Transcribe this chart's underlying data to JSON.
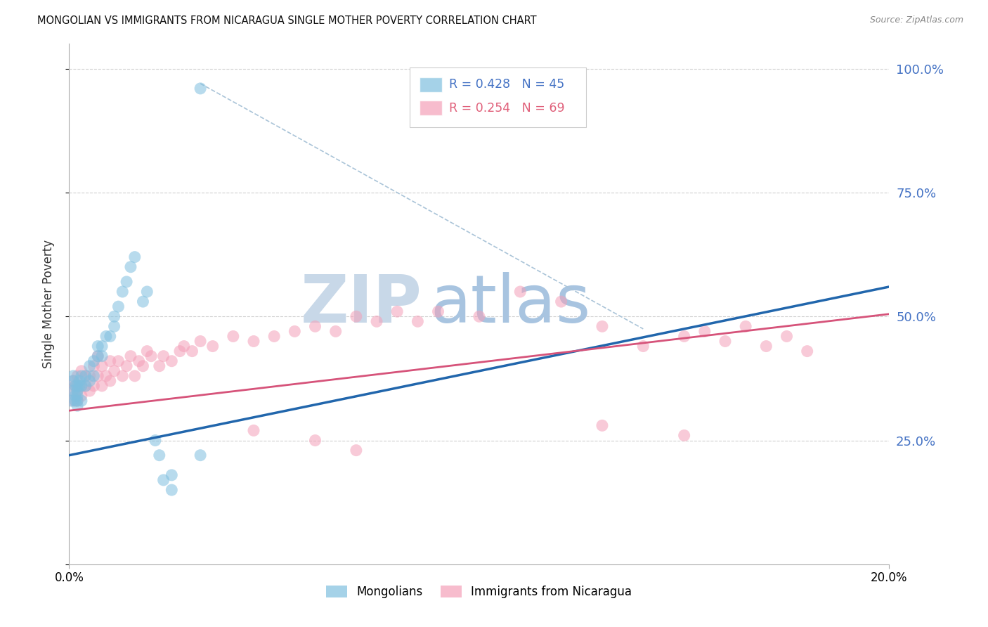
{
  "title": "MONGOLIAN VS IMMIGRANTS FROM NICARAGUA SINGLE MOTHER POVERTY CORRELATION CHART",
  "source": "Source: ZipAtlas.com",
  "ylabel": "Single Mother Poverty",
  "legend1_r": "0.428",
  "legend1_n": "45",
  "legend2_r": "0.254",
  "legend2_n": "69",
  "color_mongolian": "#7fbfdf",
  "color_nicaragua": "#f4a0b8",
  "color_blue_text": "#4472c4",
  "color_pink_text": "#e0607a",
  "watermark_zip_color": "#c8d8e8",
  "watermark_atlas_color": "#a8c4e0",
  "xlim": [
    0.0,
    0.2
  ],
  "ylim": [
    0.0,
    1.05
  ],
  "blue_line": [
    0.0,
    0.2,
    0.22,
    0.56
  ],
  "pink_line": [
    0.0,
    0.2,
    0.31,
    0.505
  ],
  "dashed_line": [
    0.032,
    0.14,
    0.97,
    0.475
  ],
  "mongolian_x": [
    0.0005,
    0.001,
    0.001,
    0.001,
    0.0015,
    0.0015,
    0.0015,
    0.002,
    0.002,
    0.002,
    0.002,
    0.002,
    0.0025,
    0.0025,
    0.003,
    0.003,
    0.003,
    0.004,
    0.004,
    0.005,
    0.005,
    0.006,
    0.006,
    0.007,
    0.007,
    0.008,
    0.008,
    0.009,
    0.01,
    0.011,
    0.011,
    0.012,
    0.013,
    0.014,
    0.015,
    0.016,
    0.018,
    0.019,
    0.021,
    0.022,
    0.023,
    0.025,
    0.025,
    0.032,
    0.032
  ],
  "mongolian_y": [
    0.33,
    0.35,
    0.37,
    0.38,
    0.33,
    0.34,
    0.36,
    0.32,
    0.33,
    0.34,
    0.35,
    0.36,
    0.36,
    0.37,
    0.33,
    0.36,
    0.38,
    0.36,
    0.38,
    0.37,
    0.4,
    0.38,
    0.41,
    0.42,
    0.44,
    0.42,
    0.44,
    0.46,
    0.46,
    0.48,
    0.5,
    0.52,
    0.55,
    0.57,
    0.6,
    0.62,
    0.53,
    0.55,
    0.25,
    0.22,
    0.17,
    0.15,
    0.18,
    0.96,
    0.22
  ],
  "nicaragua_x": [
    0.0005,
    0.001,
    0.001,
    0.0015,
    0.002,
    0.002,
    0.002,
    0.003,
    0.003,
    0.003,
    0.004,
    0.004,
    0.005,
    0.005,
    0.006,
    0.006,
    0.007,
    0.007,
    0.008,
    0.008,
    0.009,
    0.01,
    0.01,
    0.011,
    0.012,
    0.013,
    0.014,
    0.015,
    0.016,
    0.017,
    0.018,
    0.019,
    0.02,
    0.022,
    0.023,
    0.025,
    0.027,
    0.028,
    0.03,
    0.032,
    0.035,
    0.04,
    0.045,
    0.05,
    0.055,
    0.06,
    0.065,
    0.07,
    0.075,
    0.08,
    0.085,
    0.09,
    0.1,
    0.11,
    0.12,
    0.13,
    0.14,
    0.15,
    0.155,
    0.16,
    0.165,
    0.17,
    0.175,
    0.18,
    0.045,
    0.06,
    0.07,
    0.13,
    0.15
  ],
  "nicaragua_y": [
    0.35,
    0.33,
    0.37,
    0.36,
    0.33,
    0.35,
    0.38,
    0.34,
    0.36,
    0.39,
    0.36,
    0.38,
    0.35,
    0.38,
    0.36,
    0.4,
    0.38,
    0.42,
    0.36,
    0.4,
    0.38,
    0.37,
    0.41,
    0.39,
    0.41,
    0.38,
    0.4,
    0.42,
    0.38,
    0.41,
    0.4,
    0.43,
    0.42,
    0.4,
    0.42,
    0.41,
    0.43,
    0.44,
    0.43,
    0.45,
    0.44,
    0.46,
    0.45,
    0.46,
    0.47,
    0.48,
    0.47,
    0.5,
    0.49,
    0.51,
    0.49,
    0.51,
    0.5,
    0.55,
    0.53,
    0.48,
    0.44,
    0.46,
    0.47,
    0.45,
    0.48,
    0.44,
    0.46,
    0.43,
    0.27,
    0.25,
    0.23,
    0.28,
    0.26
  ],
  "ytick_vals": [
    0.0,
    0.25,
    0.5,
    0.75,
    1.0
  ],
  "ytick_labels_right": [
    "25.0%",
    "50.0%",
    "75.0%",
    "100.0%"
  ]
}
